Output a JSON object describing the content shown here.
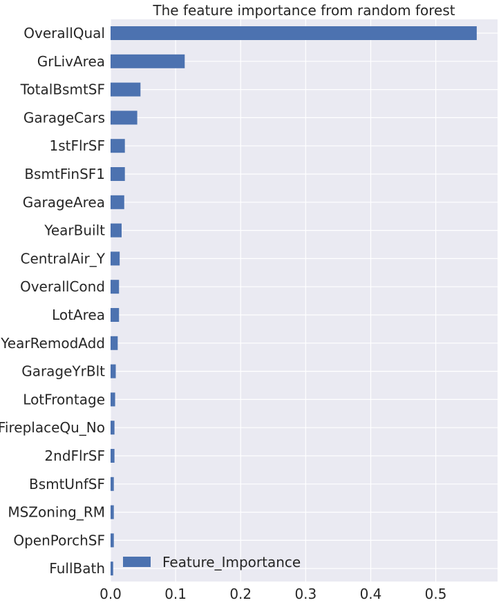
{
  "chart_data": {
    "type": "bar",
    "orientation": "horizontal",
    "title": "The feature importance from random forest",
    "xlabel": "",
    "ylabel": "",
    "xlim": [
      0,
      0.595
    ],
    "x_ticks": [
      "0.0",
      "0.1",
      "0.2",
      "0.3",
      "0.4",
      "0.5"
    ],
    "grid": true,
    "legend": {
      "placement": "lower-left",
      "entries": [
        "Feature_Importance"
      ]
    },
    "categories": [
      "OverallQual",
      "GrLivArea",
      "TotalBsmtSF",
      "GarageCars",
      "1stFlrSF",
      "BsmtFinSF1",
      "GarageArea",
      "YearBuilt",
      "CentralAir_Y",
      "OverallCond",
      "LotArea",
      "YearRemodAdd",
      "GarageYrBlt",
      "LotFrontage",
      "FireplaceQu_No",
      "2ndFlrSF",
      "BsmtUnfSF",
      "MSZoning_RM",
      "OpenPorchSF",
      "FullBath"
    ],
    "series": [
      {
        "name": "Feature_Importance",
        "values": [
          0.563,
          0.114,
          0.046,
          0.041,
          0.022,
          0.022,
          0.021,
          0.017,
          0.014,
          0.013,
          0.013,
          0.011,
          0.008,
          0.007,
          0.006,
          0.006,
          0.005,
          0.005,
          0.005,
          0.004
        ]
      }
    ],
    "colors": {
      "bar": "#4c72b0",
      "background": "#eaeaf2",
      "grid": "#ffffff",
      "text": "#262626"
    }
  }
}
